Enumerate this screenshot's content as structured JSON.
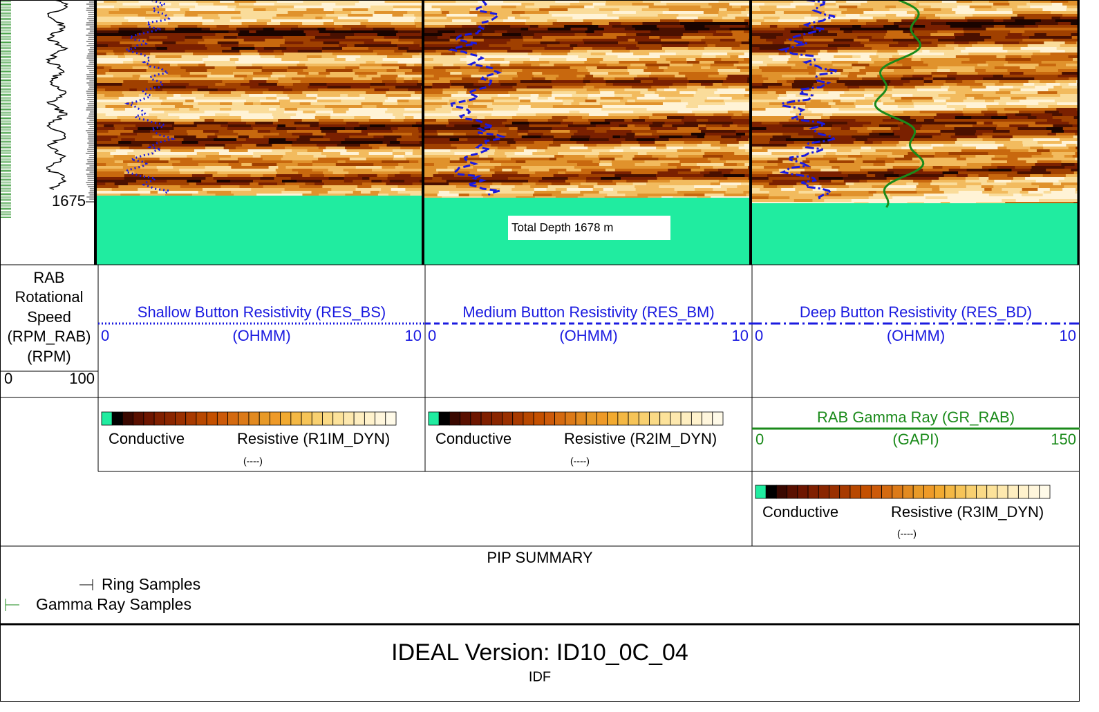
{
  "depth_label": "1675",
  "total_depth": "Total Depth 1678 m",
  "rpm_header": {
    "lines": [
      "RAB",
      "Rotational",
      "Speed",
      "(RPM_RAB)",
      "(RPM)"
    ],
    "left": "0",
    "right": "100"
  },
  "resistivity_tracks": [
    {
      "title": "Shallow Button Resistivity (RES_BS)",
      "unit": "(OHMM)",
      "left": "0",
      "right": "10"
    },
    {
      "title": "Medium Button Resistivity (RES_BM)",
      "unit": "(OHMM)",
      "left": "0",
      "right": "10"
    },
    {
      "title": "Deep Button Resistivity (RES_BD)",
      "unit": "(OHMM)",
      "left": "0",
      "right": "10"
    }
  ],
  "images": [
    {
      "low": "Conductive",
      "high": "Resistive (R1IM_DYN)",
      "unit": "(----)"
    },
    {
      "low": "Conductive",
      "high": "Resistive (R2IM_DYN)",
      "unit": "(----)"
    },
    {
      "low": "Conductive",
      "high": "Resistive (R3IM_DYN)",
      "unit": "(----)"
    }
  ],
  "gamma": {
    "title": "RAB Gamma Ray (GR_RAB)",
    "unit": "(GAPI)",
    "left": "0",
    "right": "150"
  },
  "pip": {
    "title": "PIP SUMMARY",
    "legend": [
      "Ring Samples",
      "Gamma Ray Samples"
    ]
  },
  "footer": {
    "title": "IDEAL Version: ID10_0C_04",
    "subtitle": "IDF"
  }
}
